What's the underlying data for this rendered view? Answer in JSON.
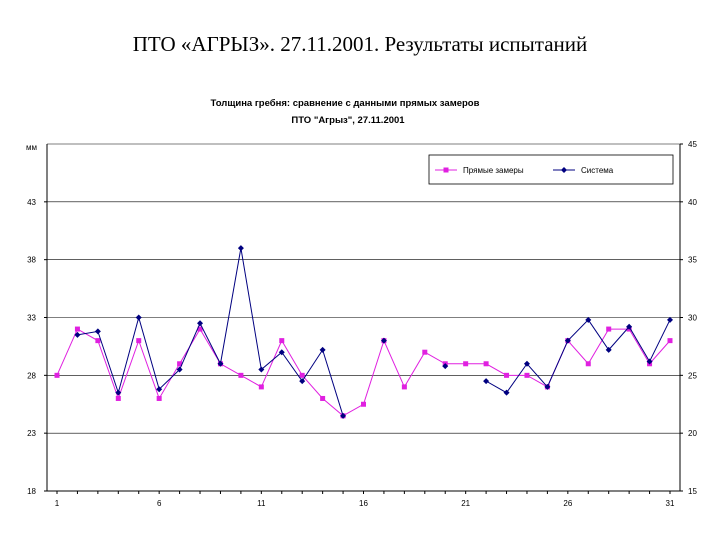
{
  "slide_title": "ПТО «АГРЫЗ». 27.11.2001. Результаты испытаний",
  "chart_data": {
    "type": "line",
    "title": "Толщина гребня: сравнение с данными прямых замеров",
    "subtitle": "ПТО \"Агрыз\", 27.11.2001",
    "ylabel": "мм",
    "ylim": [
      18,
      48
    ],
    "y2lim": [
      15,
      45
    ],
    "y_ticks": [
      18,
      23,
      28,
      33,
      38,
      43
    ],
    "y2_ticks": [
      15,
      20,
      25,
      30,
      35,
      40,
      45
    ],
    "x_range": [
      1,
      31
    ],
    "x_ticks": [
      1,
      6,
      11,
      16,
      21,
      26,
      31
    ],
    "grid": true,
    "legend_position": "top-right",
    "series": [
      {
        "name": "Прямые замеры",
        "color": "#e020e0",
        "marker": "square",
        "axis": "left",
        "x": [
          1,
          2,
          3,
          4,
          5,
          6,
          7,
          8,
          9,
          10,
          11,
          12,
          13,
          14,
          15,
          16,
          17,
          18,
          19,
          20,
          21,
          22,
          23,
          24,
          25,
          26,
          27,
          28,
          29,
          30,
          31
        ],
        "values": [
          28,
          32,
          31,
          26,
          31,
          26,
          29,
          32,
          29,
          28,
          27,
          31,
          28,
          26,
          24.5,
          25.5,
          31,
          27,
          30,
          29,
          29,
          29,
          28,
          28,
          27,
          31,
          29,
          32,
          32,
          29,
          31
        ]
      },
      {
        "name": "Система",
        "color": "#000080",
        "marker": "diamond",
        "axis": "left",
        "x": [
          2,
          3,
          4,
          5,
          6,
          7,
          8,
          9,
          10,
          11,
          12,
          13,
          14,
          15,
          null,
          17,
          null,
          20,
          null,
          22,
          23,
          24,
          25,
          26,
          27,
          28,
          29,
          30,
          31
        ],
        "values": [
          31.5,
          31.8,
          26.5,
          33,
          26.8,
          28.5,
          32.5,
          29,
          39,
          28.5,
          30,
          27.5,
          30.2,
          24.5,
          null,
          31,
          null,
          28.8,
          null,
          27.5,
          26.5,
          29,
          27,
          31,
          32.8,
          30.2,
          32.2,
          29.2,
          32.8
        ]
      }
    ]
  }
}
